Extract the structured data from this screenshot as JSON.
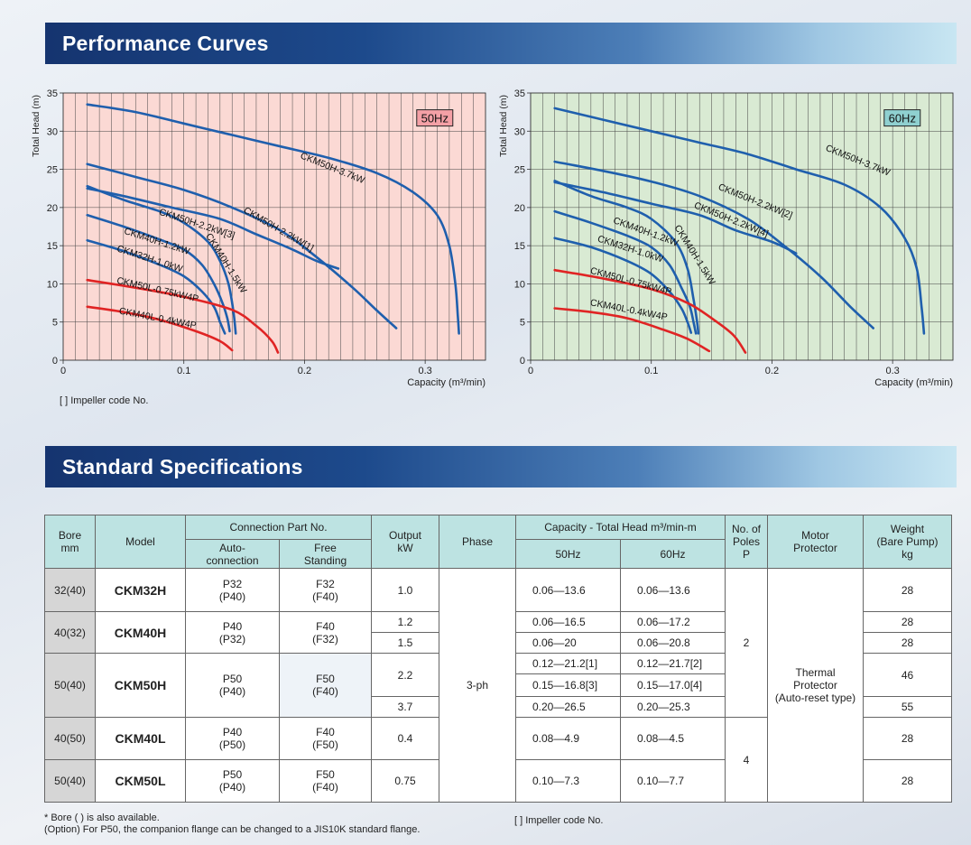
{
  "sections": {
    "performance_title": "Performance Curves",
    "spec_title": "Standard Specifications"
  },
  "performance_note": "[  ] Impeller code No.",
  "chart_data": [
    {
      "type": "line",
      "frequency_label": "50Hz",
      "badge_color": "#f4a0a6",
      "plot_background": "#fbd9d4",
      "xlabel": "Capacity (m³/min)",
      "ylabel": "Total Head (m)",
      "xlim": [
        0,
        0.35
      ],
      "ylim": [
        0,
        35
      ],
      "x_ticks": [
        "0",
        "0.1",
        "0.2",
        "0.3"
      ],
      "y_ticks": [
        "0",
        "5",
        "10",
        "15",
        "20",
        "25",
        "30",
        "35"
      ],
      "grid": true,
      "series": [
        {
          "name": "CKM50H-3.7kW",
          "color": "#1f5fad",
          "points": [
            [
              0.02,
              33.5
            ],
            [
              0.06,
              32.5
            ],
            [
              0.1,
              31
            ],
            [
              0.14,
              29.5
            ],
            [
              0.18,
              28
            ],
            [
              0.22,
              26.5
            ],
            [
              0.26,
              24.5
            ],
            [
              0.29,
              22
            ],
            [
              0.31,
              19
            ],
            [
              0.32,
              15
            ],
            [
              0.325,
              10
            ],
            [
              0.327,
              6
            ],
            [
              0.328,
              3.5
            ]
          ]
        },
        {
          "name": "CKM50H-2.2kW[1]",
          "color": "#1f5fad",
          "points": [
            [
              0.02,
              22.5
            ],
            [
              0.05,
              21.5
            ],
            [
              0.09,
              20
            ],
            [
              0.13,
              18.5
            ],
            [
              0.16,
              16.5
            ],
            [
              0.19,
              14.5
            ],
            [
              0.21,
              13
            ],
            [
              0.228,
              12
            ]
          ]
        },
        {
          "name": "CKM50H-2.2kW[3]",
          "color": "#1f5fad",
          "points": [
            [
              0.02,
              25.7
            ],
            [
              0.06,
              24
            ],
            [
              0.1,
              22.3
            ],
            [
              0.14,
              20
            ],
            [
              0.18,
              17
            ],
            [
              0.21,
              13.5
            ],
            [
              0.24,
              9.5
            ],
            [
              0.26,
              6.5
            ],
            [
              0.276,
              4.2
            ]
          ]
        },
        {
          "name": "CKM40H-1.5kW",
          "color": "#1f5fad",
          "points": [
            [
              0.02,
              22.8
            ],
            [
              0.05,
              21
            ],
            [
              0.08,
              19.5
            ],
            [
              0.1,
              18
            ],
            [
              0.12,
              15.5
            ],
            [
              0.13,
              13
            ],
            [
              0.137,
              10
            ],
            [
              0.141,
              6.5
            ],
            [
              0.143,
              3.5
            ]
          ]
        },
        {
          "name": "CKM40H-1.2kW",
          "color": "#1f5fad",
          "points": [
            [
              0.02,
              19
            ],
            [
              0.05,
              17.5
            ],
            [
              0.08,
              15.8
            ],
            [
              0.1,
              14.5
            ],
            [
              0.115,
              12.5
            ],
            [
              0.125,
              10
            ],
            [
              0.132,
              7.5
            ],
            [
              0.136,
              5.5
            ],
            [
              0.138,
              3.8
            ]
          ]
        },
        {
          "name": "CKM32H-1.0kW",
          "color": "#1f5fad",
          "points": [
            [
              0.02,
              15.7
            ],
            [
              0.05,
              14.3
            ],
            [
              0.08,
              12.5
            ],
            [
              0.1,
              11
            ],
            [
              0.115,
              9
            ],
            [
              0.125,
              7
            ],
            [
              0.13,
              5
            ],
            [
              0.134,
              3.5
            ]
          ]
        },
        {
          "name": "CKM50L-0.75kW4P",
          "color": "#e02424",
          "points": [
            [
              0.02,
              10.5
            ],
            [
              0.06,
              9.5
            ],
            [
              0.1,
              8.3
            ],
            [
              0.14,
              6.6
            ],
            [
              0.16,
              4.5
            ],
            [
              0.173,
              2.5
            ],
            [
              0.178,
              1
            ]
          ]
        },
        {
          "name": "CKM40L-0.4kW4P",
          "color": "#e02424",
          "points": [
            [
              0.02,
              7
            ],
            [
              0.05,
              6.3
            ],
            [
              0.08,
              5.3
            ],
            [
              0.11,
              3.8
            ],
            [
              0.13,
              2.5
            ],
            [
              0.14,
              1.3
            ]
          ]
        }
      ],
      "curve_labels": [
        {
          "text": "CKM50H-3.7kW",
          "x": 0.196,
          "y": 26.5,
          "angle": 22
        },
        {
          "text": "CKM50H-2.2kW[1]",
          "x": 0.149,
          "y": 19.4,
          "angle": 30
        },
        {
          "text": "CKM50H-2.2kW[3]",
          "x": 0.079,
          "y": 19.1,
          "angle": 18
        },
        {
          "text": "CKM40H-1.5kW",
          "x": 0.118,
          "y": 16.3,
          "angle": 58
        },
        {
          "text": "CKM40H-1.2kW",
          "x": 0.05,
          "y": 16.6,
          "angle": 18
        },
        {
          "text": "CKM32H-1.0kW",
          "x": 0.044,
          "y": 14.3,
          "angle": 18
        },
        {
          "text": "CKM50L-0.75kW4P",
          "x": 0.044,
          "y": 10.1,
          "angle": 13
        },
        {
          "text": "CKM40L-0.4kW4P",
          "x": 0.046,
          "y": 6.1,
          "angle": 11
        }
      ],
      "note": "[  ] Impeller code No."
    },
    {
      "type": "line",
      "frequency_label": "60Hz",
      "badge_color": "#8fd0d0",
      "plot_background": "#d9ead3",
      "xlabel": "Capacity (m³/min)",
      "ylabel": "Total Head (m)",
      "xlim": [
        0,
        0.35
      ],
      "ylim": [
        0,
        35
      ],
      "x_ticks": [
        "0",
        "0.1",
        "0.2",
        "0.3"
      ],
      "y_ticks": [
        "0",
        "5",
        "10",
        "15",
        "20",
        "25",
        "30",
        "35"
      ],
      "grid": true,
      "series": [
        {
          "name": "CKM50H-3.7kW",
          "color": "#1f5fad",
          "points": [
            [
              0.02,
              33
            ],
            [
              0.06,
              31.5
            ],
            [
              0.1,
              30
            ],
            [
              0.14,
              28.5
            ],
            [
              0.18,
              27
            ],
            [
              0.22,
              25
            ],
            [
              0.26,
              23
            ],
            [
              0.29,
              20
            ],
            [
              0.31,
              16
            ],
            [
              0.32,
              12
            ],
            [
              0.324,
              7
            ],
            [
              0.326,
              3.5
            ]
          ]
        },
        {
          "name": "CKM50H-2.2kW[2]",
          "color": "#1f5fad",
          "points": [
            [
              0.02,
              26
            ],
            [
              0.06,
              24.8
            ],
            [
              0.1,
              23.4
            ],
            [
              0.14,
              21.5
            ],
            [
              0.18,
              18.5
            ],
            [
              0.21,
              15
            ],
            [
              0.24,
              11
            ],
            [
              0.265,
              7
            ],
            [
              0.284,
              4.2
            ]
          ]
        },
        {
          "name": "CKM50H-2.2kW[4]",
          "color": "#1f5fad",
          "points": [
            [
              0.02,
              23.3
            ],
            [
              0.06,
              22
            ],
            [
              0.1,
              20.5
            ],
            [
              0.14,
              19
            ],
            [
              0.17,
              17
            ],
            [
              0.2,
              15.5
            ],
            [
              0.22,
              14
            ]
          ]
        },
        {
          "name": "CKM40H-1.5kW",
          "color": "#1f5fad",
          "points": [
            [
              0.02,
              23.5
            ],
            [
              0.05,
              21.5
            ],
            [
              0.08,
              20
            ],
            [
              0.1,
              18.5
            ],
            [
              0.12,
              15.5
            ],
            [
              0.13,
              12
            ],
            [
              0.135,
              8
            ],
            [
              0.138,
              5
            ],
            [
              0.139,
              3.5
            ]
          ]
        },
        {
          "name": "CKM40H-1.2kW",
          "color": "#1f5fad",
          "points": [
            [
              0.02,
              19.5
            ],
            [
              0.05,
              18
            ],
            [
              0.08,
              16.3
            ],
            [
              0.1,
              14.8
            ],
            [
              0.115,
              12.5
            ],
            [
              0.125,
              9.5
            ],
            [
              0.132,
              7
            ],
            [
              0.135,
              5
            ],
            [
              0.137,
              3.5
            ]
          ]
        },
        {
          "name": "CKM32H-1.0kW",
          "color": "#1f5fad",
          "points": [
            [
              0.02,
              16
            ],
            [
              0.05,
              14.8
            ],
            [
              0.08,
              13
            ],
            [
              0.1,
              11.3
            ],
            [
              0.115,
              9
            ],
            [
              0.125,
              6.8
            ],
            [
              0.13,
              5
            ],
            [
              0.133,
              3.6
            ]
          ]
        },
        {
          "name": "CKM50L-0.75kW4P",
          "color": "#e02424",
          "points": [
            [
              0.02,
              11.8
            ],
            [
              0.06,
              10.7
            ],
            [
              0.1,
              9.3
            ],
            [
              0.13,
              7.5
            ],
            [
              0.15,
              5.5
            ],
            [
              0.168,
              3.3
            ],
            [
              0.178,
              1
            ]
          ]
        },
        {
          "name": "CKM40L-0.4kW4P",
          "color": "#e02424",
          "points": [
            [
              0.02,
              6.8
            ],
            [
              0.05,
              6.3
            ],
            [
              0.08,
              5.5
            ],
            [
              0.11,
              4
            ],
            [
              0.13,
              2.8
            ],
            [
              0.148,
              1.2
            ]
          ]
        }
      ],
      "curve_labels": [
        {
          "text": "CKM50H-3.7kW",
          "x": 0.244,
          "y": 27.5,
          "angle": 22
        },
        {
          "text": "CKM50H-2.2kW[2]",
          "x": 0.155,
          "y": 22.4,
          "angle": 22
        },
        {
          "text": "CKM50H-2.2kW[4]",
          "x": 0.135,
          "y": 20.0,
          "angle": 22
        },
        {
          "text": "CKM40H-1.5kW",
          "x": 0.119,
          "y": 17.4,
          "angle": 58
        },
        {
          "text": "CKM40H-1.2kW",
          "x": 0.068,
          "y": 18.0,
          "angle": 20
        },
        {
          "text": "CKM32H-1.0kW",
          "x": 0.055,
          "y": 15.6,
          "angle": 18
        },
        {
          "text": "CKM50L-0.75kW4P",
          "x": 0.049,
          "y": 11.4,
          "angle": 15
        },
        {
          "text": "CKM40L-0.4kW4P",
          "x": 0.049,
          "y": 7.2,
          "angle": 11
        }
      ]
    }
  ],
  "spec_table": {
    "headers": {
      "bore": "Bore",
      "bore_unit": "mm",
      "model": "Model",
      "connection": "Connection Part No.",
      "auto": "Auto-",
      "auto2": "connection",
      "free": "Free",
      "free2": "Standing",
      "output": "Output",
      "output_unit": "kW",
      "phase": "Phase",
      "capacity": "Capacity - Total Head m³/min-m",
      "hz50": "50Hz",
      "hz60": "60Hz",
      "poles": "No. of",
      "poles2": "Poles",
      "poles3": "P",
      "motor": "Motor",
      "motor2": "Protector",
      "weight": "Weight",
      "weight2": "(Bare Pump)",
      "weight3": "kg"
    },
    "phase_value": "3-ph",
    "poles_2": "2",
    "poles_4": "4",
    "protector": [
      "Thermal",
      "Protector",
      "(Auto-reset type)"
    ],
    "rows": {
      "ckm32h": {
        "bore": "32(40)",
        "model": "CKM32H",
        "auto": "P32",
        "auto_alt": "(P40)",
        "free": "F32",
        "free_alt": "(F40)",
        "output": "1.0",
        "cap50": "0.06—13.6",
        "cap60": "0.06—13.6",
        "weight": "28"
      },
      "ckm40h": {
        "bore": "40(32)",
        "model": "CKM40H",
        "auto": "P40",
        "auto_alt": "(P32)",
        "free": "F40",
        "free_alt": "(F32)",
        "output_a": "1.2",
        "output_b": "1.5",
        "cap50_a": "0.06—16.5",
        "cap60_a": "0.06—17.2",
        "cap50_b": "0.06—20",
        "cap60_b": "0.06—20.8",
        "weight_a": "28",
        "weight_b": "28"
      },
      "ckm50h": {
        "bore": "50(40)",
        "model": "CKM50H",
        "auto": "P50",
        "auto_alt": "(P40)",
        "free": "F50",
        "free_alt": "(F40)",
        "output_a": "2.2",
        "output_b": "3.7",
        "cap50_a": "0.12—21.2[1]",
        "cap60_a": "0.12—21.7[2]",
        "cap50_b": "0.15—16.8[3]",
        "cap60_b": "0.15—17.0[4]",
        "cap50_c": "0.20—26.5",
        "cap60_c": "0.20—25.3",
        "weight_a": "46",
        "weight_b": "55"
      },
      "ckm40l": {
        "bore": "40(50)",
        "model": "CKM40L",
        "auto": "P40",
        "auto_alt": "(P50)",
        "free": "F40",
        "free_alt": "(F50)",
        "output": "0.4",
        "cap50": "0.08—4.9",
        "cap60": "0.08—4.5",
        "weight": "28"
      },
      "ckm50l": {
        "bore": "50(40)",
        "model": "CKM50L",
        "auto": "P50",
        "auto_alt": "(P40)",
        "free": "F50",
        "free_alt": "(F40)",
        "output": "0.75",
        "cap50": "0.10—7.3",
        "cap60": "0.10—7.7",
        "weight": "28"
      }
    }
  },
  "footnotes": {
    "bore": "* Bore (  ) is also available.",
    "option": "(Option) For P50, the companion flange can be changed to a JIS10K standard flange.",
    "impeller": "[  ] Impeller code No."
  }
}
